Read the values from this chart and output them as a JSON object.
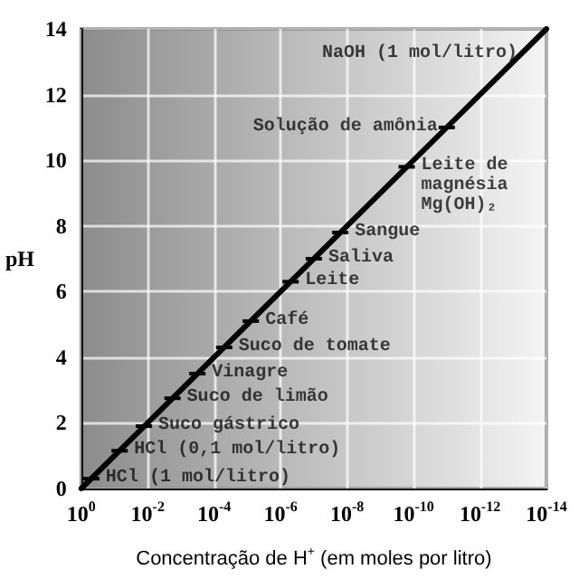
{
  "chart_data": {
    "type": "line",
    "xlabel": "Concentração de H$^{+}$ (em moles por litro)",
    "ylabel": "pH",
    "log": "x",
    "grid": true,
    "marker": "none",
    "line_style": "solid",
    "x": [
      1,
      1e-14
    ],
    "series": [
      {
        "color": "#000000",
        "values": [
          0,
          14
        ]
      }
    ],
    "xlim": [
      1,
      1e-14
    ],
    "xticks": [
      {
        "value": 1,
        "label": "10$^{0}$"
      },
      {
        "value": 0.01,
        "label": "10$^{-2}$"
      },
      {
        "value": 0.0001,
        "label": "10$^{-4}$"
      },
      {
        "value": 1e-06,
        "label": "10$^{-6}$"
      },
      {
        "value": 1e-08,
        "label": "10$^{-8}$"
      },
      {
        "value": 1e-10,
        "label": "10$^{-10}$"
      },
      {
        "value": 1e-12,
        "label": "10$^{-12}$"
      },
      {
        "value": 1e-14,
        "label": "10$^{-14}$"
      }
    ],
    "ylim": [
      0,
      14
    ],
    "yticks": [
      0,
      2,
      4,
      6,
      8,
      10,
      12,
      14
    ],
    "annotations": [
      {
        "text": "NaOH (1 mol/litro)",
        "x": 1e-14,
        "y": 14
      },
      {
        "text": "Solução de amônia",
        "x": 1e-11,
        "y": 11
      },
      {
        "text": "Leite de\nmagnésia\nMg(OH)₂",
        "x": 1.6e-10,
        "y": 9.8
      },
      {
        "text": "Sangue",
        "x": 1.6e-08,
        "y": 7.8
      },
      {
        "text": "Saliva",
        "x": 1e-07,
        "y": 7
      },
      {
        "text": "Leite",
        "x": 5e-07,
        "y": 6.3
      },
      {
        "text": "Café",
        "x": 7.9e-06,
        "y": 5.1
      },
      {
        "text": "Suco de tomate",
        "x": 5e-05,
        "y": 4.3
      },
      {
        "text": "Vinagre",
        "x": 0.00032,
        "y": 3.5
      },
      {
        "text": "Suco de limão",
        "x": 0.0018,
        "y": 2.75
      },
      {
        "text": "Suco gástrico",
        "x": 0.013,
        "y": 1.9
      },
      {
        "text": "HCl (0,1 mol/litro)",
        "x": 0.07,
        "y": 1.15
      },
      {
        "text": "HCl (1 mol/litro)",
        "x": 0.5,
        "y": 0.3
      }
    ]
  }
}
